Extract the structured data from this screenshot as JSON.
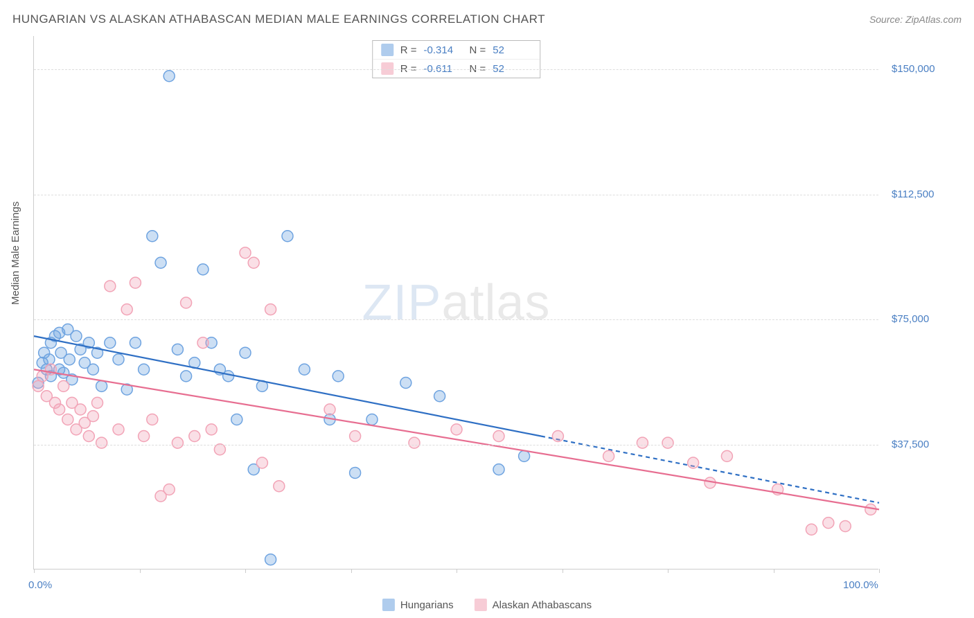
{
  "title": "HUNGARIAN VS ALASKAN ATHABASCAN MEDIAN MALE EARNINGS CORRELATION CHART",
  "source_label": "Source: ZipAtlas.com",
  "ylabel": "Median Male Earnings",
  "watermark_zip": "ZIP",
  "watermark_rest": "atlas",
  "chart": {
    "type": "scatter",
    "xlim": [
      0,
      100
    ],
    "ylim": [
      0,
      160000
    ],
    "x_ticks": [
      0,
      12.5,
      25,
      37.5,
      50,
      62.5,
      75,
      87.5,
      100
    ],
    "x_tick_labels": {
      "0": "0.0%",
      "100": "100.0%"
    },
    "y_gridlines": [
      37500,
      75000,
      112500,
      150000
    ],
    "y_tick_labels": [
      "$37,500",
      "$75,000",
      "$112,500",
      "$150,000"
    ],
    "grid_color": "#dddddd",
    "axis_color": "#cccccc",
    "background_color": "#ffffff",
    "marker_radius": 8,
    "marker_fill_opacity": 0.35,
    "marker_stroke_width": 1.5,
    "line_width": 2.2,
    "series": [
      {
        "name": "Hungarians",
        "color": "#6ea3e0",
        "line_color": "#2e6fc4",
        "R": "-0.314",
        "N": "52",
        "trend": {
          "x1": 0,
          "y1": 70000,
          "x2": 60,
          "y2": 40000,
          "dash_from_x": 60,
          "x3": 100,
          "y3": 20000
        },
        "points": [
          [
            0.5,
            56000
          ],
          [
            1,
            62000
          ],
          [
            1.2,
            65000
          ],
          [
            1.5,
            60000
          ],
          [
            1.8,
            63000
          ],
          [
            2,
            68000
          ],
          [
            2,
            58000
          ],
          [
            2.5,
            70000
          ],
          [
            3,
            71000
          ],
          [
            3,
            60000
          ],
          [
            3.2,
            65000
          ],
          [
            3.5,
            59000
          ],
          [
            4,
            72000
          ],
          [
            4.2,
            63000
          ],
          [
            4.5,
            57000
          ],
          [
            5,
            70000
          ],
          [
            5.5,
            66000
          ],
          [
            6,
            62000
          ],
          [
            6.5,
            68000
          ],
          [
            7,
            60000
          ],
          [
            7.5,
            65000
          ],
          [
            8,
            55000
          ],
          [
            9,
            68000
          ],
          [
            10,
            63000
          ],
          [
            11,
            54000
          ],
          [
            12,
            68000
          ],
          [
            13,
            60000
          ],
          [
            14,
            100000
          ],
          [
            15,
            92000
          ],
          [
            16,
            148000
          ],
          [
            17,
            66000
          ],
          [
            18,
            58000
          ],
          [
            19,
            62000
          ],
          [
            20,
            90000
          ],
          [
            21,
            68000
          ],
          [
            22,
            60000
          ],
          [
            23,
            58000
          ],
          [
            24,
            45000
          ],
          [
            25,
            65000
          ],
          [
            26,
            30000
          ],
          [
            27,
            55000
          ],
          [
            28,
            3000
          ],
          [
            30,
            100000
          ],
          [
            32,
            60000
          ],
          [
            35,
            45000
          ],
          [
            36,
            58000
          ],
          [
            38,
            29000
          ],
          [
            40,
            45000
          ],
          [
            44,
            56000
          ],
          [
            48,
            52000
          ],
          [
            55,
            30000
          ],
          [
            58,
            34000
          ]
        ]
      },
      {
        "name": "Alaskan Athabascans",
        "color": "#f2a3b6",
        "line_color": "#e76e91",
        "R": "-0.611",
        "N": "52",
        "trend": {
          "x1": 0,
          "y1": 60000,
          "x2": 100,
          "y2": 18000,
          "dash_from_x": 100,
          "x3": 100,
          "y3": 18000
        },
        "points": [
          [
            0.5,
            55000
          ],
          [
            1,
            58000
          ],
          [
            1.5,
            52000
          ],
          [
            2,
            60000
          ],
          [
            2.5,
            50000
          ],
          [
            3,
            48000
          ],
          [
            3.5,
            55000
          ],
          [
            4,
            45000
          ],
          [
            4.5,
            50000
          ],
          [
            5,
            42000
          ],
          [
            5.5,
            48000
          ],
          [
            6,
            44000
          ],
          [
            6.5,
            40000
          ],
          [
            7,
            46000
          ],
          [
            7.5,
            50000
          ],
          [
            8,
            38000
          ],
          [
            9,
            85000
          ],
          [
            10,
            42000
          ],
          [
            11,
            78000
          ],
          [
            12,
            86000
          ],
          [
            13,
            40000
          ],
          [
            14,
            45000
          ],
          [
            15,
            22000
          ],
          [
            16,
            24000
          ],
          [
            17,
            38000
          ],
          [
            18,
            80000
          ],
          [
            19,
            40000
          ],
          [
            20,
            68000
          ],
          [
            21,
            42000
          ],
          [
            22,
            36000
          ],
          [
            25,
            95000
          ],
          [
            26,
            92000
          ],
          [
            27,
            32000
          ],
          [
            28,
            78000
          ],
          [
            29,
            25000
          ],
          [
            35,
            48000
          ],
          [
            38,
            40000
          ],
          [
            45,
            38000
          ],
          [
            50,
            42000
          ],
          [
            55,
            40000
          ],
          [
            62,
            40000
          ],
          [
            68,
            34000
          ],
          [
            72,
            38000
          ],
          [
            75,
            38000
          ],
          [
            78,
            32000
          ],
          [
            80,
            26000
          ],
          [
            82,
            34000
          ],
          [
            88,
            24000
          ],
          [
            92,
            12000
          ],
          [
            94,
            14000
          ],
          [
            96,
            13000
          ],
          [
            99,
            18000
          ]
        ]
      }
    ]
  },
  "legend_bottom": [
    {
      "label": "Hungarians",
      "color": "#6ea3e0"
    },
    {
      "label": "Alaskan Athabascans",
      "color": "#f2a3b6"
    }
  ]
}
